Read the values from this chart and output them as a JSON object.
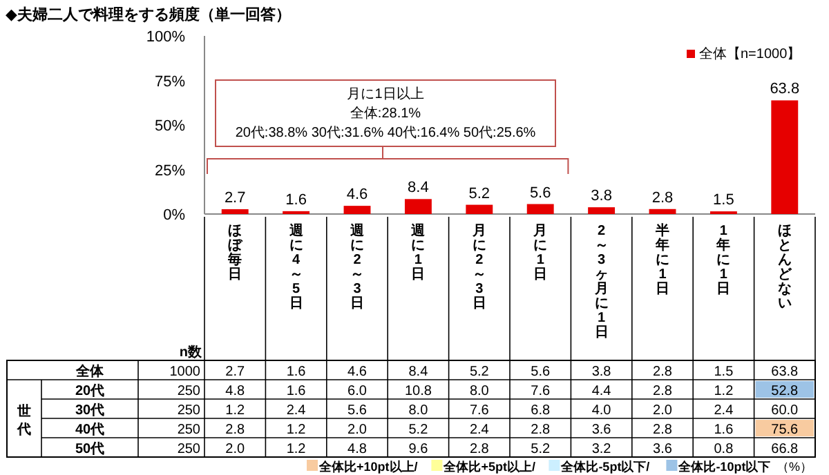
{
  "chart_data": {
    "type": "bar",
    "title": "◆夫婦二人で料理をする頻度（単一回答）",
    "categories": [
      "ほぼ毎日",
      "週に4～5日",
      "週に2～3日",
      "週に1日",
      "月に2～3日",
      "月に1日",
      "2～3ヶ月に1日",
      "半年に1日",
      "1年に1日",
      "ほとんどない"
    ],
    "series": [
      {
        "name": "全体【n=1000】",
        "color": "#e60000",
        "values": [
          2.7,
          1.6,
          4.6,
          8.4,
          5.2,
          5.6,
          3.8,
          2.8,
          1.5,
          63.8
        ]
      }
    ],
    "ylim": [
      0,
      100
    ],
    "yticks": [
      {
        "value": 0,
        "label": "0%"
      },
      {
        "value": 25,
        "label": "25%"
      },
      {
        "value": 50,
        "label": "50%"
      },
      {
        "value": 75,
        "label": "75%"
      },
      {
        "value": 100,
        "label": "100%"
      }
    ],
    "legend": "top right",
    "data_labels": true,
    "annotations": [
      "月に1日以上",
      "全体:28.1%",
      "20代:38.8% 30代:31.6% 40代:16.4% 50代:25.6%",
      "n数",
      "全体",
      "1000",
      "2.7",
      "1.6",
      "4.6",
      "8.4",
      "5.2",
      "5.6",
      "3.8",
      "2.8",
      "1.5",
      "63.8",
      "世代",
      "20代",
      "250",
      "4.8",
      "1.6",
      "6.0",
      "10.8",
      "8.0",
      "7.6",
      "4.4",
      "2.8",
      "1.2",
      "52.8",
      "30代",
      "250",
      "1.2",
      "2.4",
      "5.6",
      "8.0",
      "7.6",
      "6.8",
      "4.0",
      "2.0",
      "2.4",
      "60.0",
      "40代",
      "250",
      "2.8",
      "1.2",
      "2.0",
      "5.2",
      "2.4",
      "2.8",
      "3.6",
      "2.8",
      "1.6",
      "75.6",
      "50代",
      "250",
      "2.0",
      "1.2",
      "4.8",
      "9.6",
      "2.8",
      "5.2",
      "3.2",
      "3.6",
      "0.8",
      "66.8",
      "全体比+10pt以上/",
      "全体比+5pt以上/",
      "全体比-5pt以下/",
      "全体比-10pt以下",
      "（%）"
    ]
  }
}
